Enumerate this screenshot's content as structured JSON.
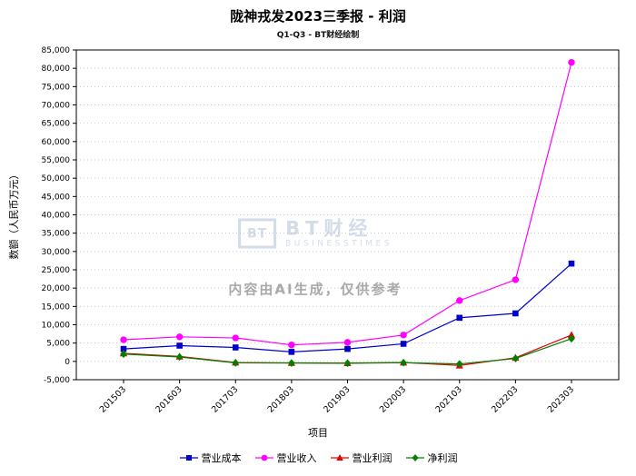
{
  "chart_data": {
    "type": "line",
    "title": "陇神戎发2023三季报 - 利润",
    "subtitle": "Q1-Q3 - BT财经绘制",
    "xlabel": "项目",
    "ylabel": "数额（人民币万元）",
    "ylim": [
      -5000,
      85000
    ],
    "ytick_step": 5000,
    "grid": "horizontal-dotted",
    "legend_position": "bottom",
    "categories": [
      "201503",
      "201603",
      "201703",
      "201803",
      "201903",
      "202003",
      "202103",
      "202203",
      "202303"
    ],
    "series": [
      {
        "name": "营业成本",
        "marker": "square",
        "color": "#0000cc",
        "values": [
          3400,
          4300,
          3800,
          2600,
          3400,
          4800,
          11900,
          13100,
          26700
        ]
      },
      {
        "name": "营业收入",
        "marker": "circle",
        "color": "#ff00ff",
        "values": [
          5900,
          6700,
          6400,
          4500,
          5200,
          7200,
          16600,
          22300,
          81600
        ]
      },
      {
        "name": "营业利润",
        "marker": "triangle-up",
        "color": "#e60000",
        "values": [
          2200,
          1350,
          -300,
          -400,
          -450,
          -300,
          -1100,
          1000,
          7200
        ]
      },
      {
        "name": "净利润",
        "marker": "diamond",
        "color": "#008000",
        "values": [
          2000,
          1200,
          -400,
          -450,
          -500,
          -350,
          -700,
          800,
          6200
        ]
      }
    ]
  },
  "watermark": {
    "logo_text": "BT",
    "brand": "BT财经",
    "brand_sub": "BUSINESSTIMES",
    "disclaimer": "内容由AI生成，仅供参考"
  }
}
